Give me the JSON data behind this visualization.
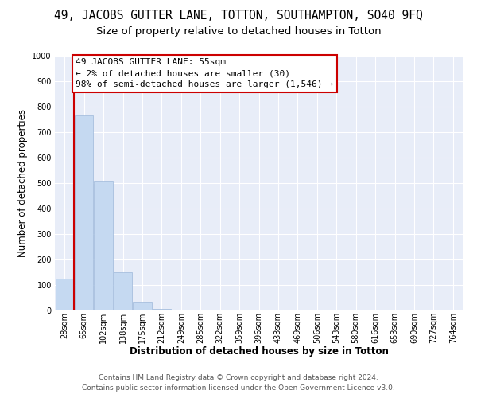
{
  "title": "49, JACOBS GUTTER LANE, TOTTON, SOUTHAMPTON, SO40 9FQ",
  "subtitle": "Size of property relative to detached houses in Totton",
  "xlabel": "Distribution of detached houses by size in Totton",
  "ylabel": "Number of detached properties",
  "footer_line1": "Contains HM Land Registry data © Crown copyright and database right 2024.",
  "footer_line2": "Contains public sector information licensed under the Open Government Licence v3.0.",
  "categories": [
    "28sqm",
    "65sqm",
    "102sqm",
    "138sqm",
    "175sqm",
    "212sqm",
    "249sqm",
    "285sqm",
    "322sqm",
    "359sqm",
    "396sqm",
    "433sqm",
    "469sqm",
    "506sqm",
    "543sqm",
    "580sqm",
    "616sqm",
    "653sqm",
    "690sqm",
    "727sqm",
    "764sqm"
  ],
  "values": [
    125,
    765,
    505,
    150,
    30,
    5,
    0,
    0,
    0,
    0,
    0,
    0,
    0,
    0,
    0,
    0,
    0,
    0,
    0,
    0,
    0
  ],
  "bar_color": "#c5d9f1",
  "bar_edge_color": "#9db8d9",
  "background_color": "#ffffff",
  "plot_bg_color": "#e8edf8",
  "grid_color": "#ffffff",
  "vline_x_index": 0.5,
  "annotation_text_line1": "49 JACOBS GUTTER LANE: 55sqm",
  "annotation_text_line2": "← 2% of detached houses are smaller (30)",
  "annotation_text_line3": "98% of semi-detached houses are larger (1,546) →",
  "annotation_border_color": "#cc0000",
  "annotation_bg_color": "#ffffff",
  "vline_color": "#cc0000",
  "ylim": [
    0,
    1000
  ],
  "yticks": [
    0,
    100,
    200,
    300,
    400,
    500,
    600,
    700,
    800,
    900,
    1000
  ],
  "title_fontsize": 10.5,
  "subtitle_fontsize": 9.5,
  "axis_label_fontsize": 8.5,
  "tick_fontsize": 7,
  "annotation_fontsize": 8,
  "footer_fontsize": 6.5
}
